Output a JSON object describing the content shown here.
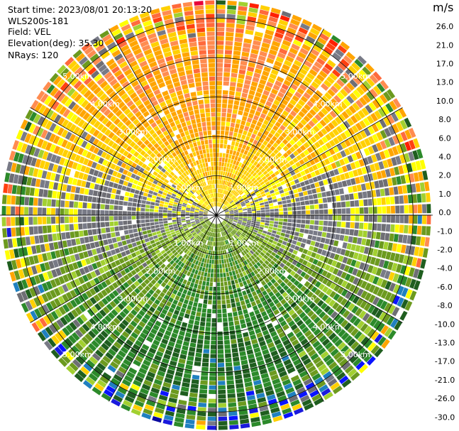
{
  "header": {
    "start_time": "Start time: 2023/08/01 20:13:20",
    "site": "WLS200s-181",
    "field": "Field: VEL",
    "elevation": "Elevation(deg): 35.30",
    "nrays": "NRays: 120"
  },
  "colorbar": {
    "unit": "m/s",
    "ticks": [
      "26.0",
      "21.0",
      "17.0",
      "13.0",
      "10.0",
      "8.0",
      "6.0",
      "4.0",
      "2.0",
      "1.0",
      "0.0",
      "-1.0",
      "-2.0",
      "-4.0",
      "-6.0",
      "-8.0",
      "-10.0",
      "-13.0",
      "-17.0",
      "-21.0",
      "-26.0",
      "-30.0"
    ],
    "colors": [
      "#ff0080",
      "#e8003a",
      "#ff1f00",
      "#ff4010",
      "#ff6a3c",
      "#ff8c50",
      "#ffa500",
      "#ffd000",
      "#ffff00",
      "#787a86",
      "#6e6e74",
      "#a2d030",
      "#6c9a1e",
      "#2c8a2a",
      "#1f5e1f",
      "#2080c0",
      "#0a14ff",
      "#1a1add",
      "#0a0aa0",
      "#182890",
      "#0d0d60"
    ]
  },
  "chart_data": {
    "type": "heatmap",
    "subtype": "ppi-polar-radial-velocity",
    "field": "VEL",
    "units": "m/s",
    "n_rays": 120,
    "elevation_deg": 35.3,
    "range_rings_km": [
      1.0,
      2.0,
      3.0,
      4.0,
      5.0
    ],
    "range_ring_labels": [
      "1.00km",
      "2.00km",
      "3.00km",
      "4.00km",
      "5.00km"
    ],
    "spoke_angles_deg": [
      0,
      30,
      60,
      90,
      120,
      150,
      180,
      210,
      240,
      270,
      300,
      330
    ],
    "color_bounds": [
      26.0,
      21.0,
      17.0,
      13.0,
      10.0,
      8.0,
      6.0,
      4.0,
      2.0,
      1.0,
      0.0,
      -1.0,
      -2.0,
      -4.0,
      -6.0,
      -8.0,
      -10.0,
      -13.0,
      -17.0,
      -21.0,
      -26.0,
      -30.0
    ],
    "sector_summary": [
      {
        "sector": "north (up)",
        "dominant": "2.0 to 6.0 m/s (yellow/orange)"
      },
      {
        "sector": "south (down)",
        "dominant": "-2.0 to -6.0 m/s (green)"
      },
      {
        "sector": "east/west",
        "dominant": "-1.0 to 1.0 m/s (grey)"
      },
      {
        "sector": "outer edge",
        "dominant": "noisy, full color range"
      }
    ]
  }
}
